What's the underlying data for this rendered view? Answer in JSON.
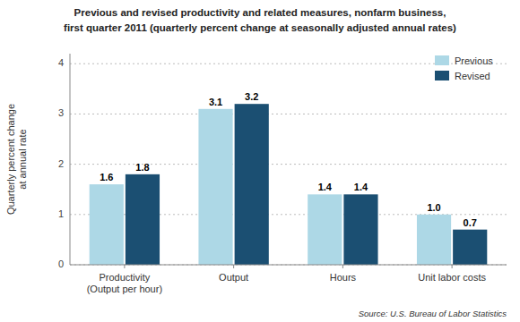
{
  "chart_data": {
    "type": "bar",
    "title": "Previous and revised productivity and related measures, nonfarm business,",
    "subtitle": "first quarter 2011 (quarterly percent change at seasonally adjusted annual rates)",
    "source": "Source: U.S. Bureau of Labor Statistics",
    "categories": [
      "Productivity\n(Output per hour)",
      "Output",
      "Hours",
      "Unit labor costs"
    ],
    "series": [
      {
        "name": "Previous",
        "color": "#add8e6",
        "values": [
          1.6,
          3.1,
          1.4,
          1.0
        ],
        "value_labels": [
          "1.6",
          "3.1",
          "1.4",
          "1.0"
        ]
      },
      {
        "name": "Revised",
        "color": "#1b4f72",
        "values": [
          1.8,
          3.2,
          1.4,
          0.7
        ]
      }
    ],
    "ylabel": "Quarterly percent change\nat annual rate",
    "ylim": [
      0,
      4.2
    ],
    "yticks": [
      0,
      1,
      2,
      3,
      4
    ],
    "grid": true,
    "legend": "upper right",
    "data_labels": true
  }
}
